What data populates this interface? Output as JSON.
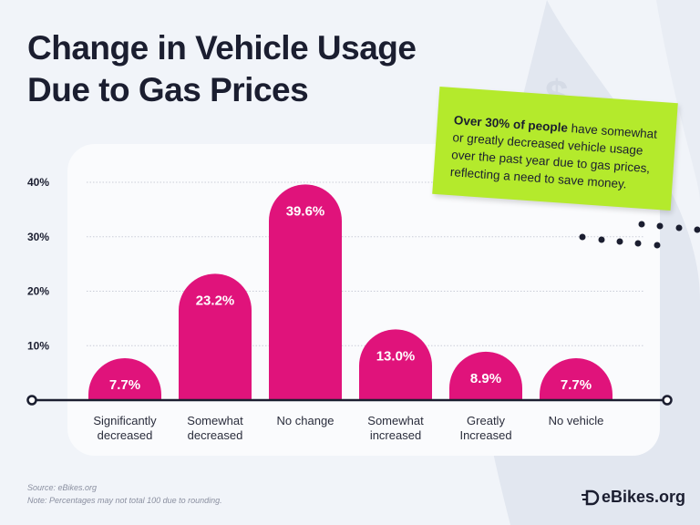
{
  "title_line1": "Change in Vehicle Usage",
  "title_line2": "Due to Gas Prices",
  "callout": {
    "bold": "Over 30% of people",
    "text": " have somewhat or greatly decreased vehicle usage over the past year due to gas prices, reflecting a need to save money."
  },
  "footer": {
    "source": "Source: eBikes.org",
    "note": "Note: Percentages may not total 100 due to rounding."
  },
  "logo": {
    "text": "eBikes.org",
    "icon": "ebike-d-logo-icon"
  },
  "colors": {
    "bar": "#e0137b",
    "callout": "#b4ea2c",
    "text": "#1b1e30",
    "background": "#f1f4f9"
  },
  "chart_data": {
    "type": "bar",
    "categories": [
      [
        "Significantly",
        "decreased"
      ],
      [
        "Somewhat",
        "decreased"
      ],
      [
        "No change"
      ],
      [
        "Somewhat",
        "increased"
      ],
      [
        "Greatly",
        "Increased"
      ],
      [
        "No vehicle"
      ]
    ],
    "values": [
      7.7,
      23.2,
      39.6,
      13.0,
      8.9,
      7.7
    ],
    "data_labels": [
      "7.7%",
      "23.2%",
      "39.6%",
      "13.0%",
      "8.9%",
      "7.7%"
    ],
    "yticks": [
      10,
      20,
      30,
      40
    ],
    "ytick_labels": [
      "10%",
      "20%",
      "30%",
      "40%"
    ],
    "ylim": [
      0,
      40
    ],
    "grid": true,
    "unit": "%"
  }
}
